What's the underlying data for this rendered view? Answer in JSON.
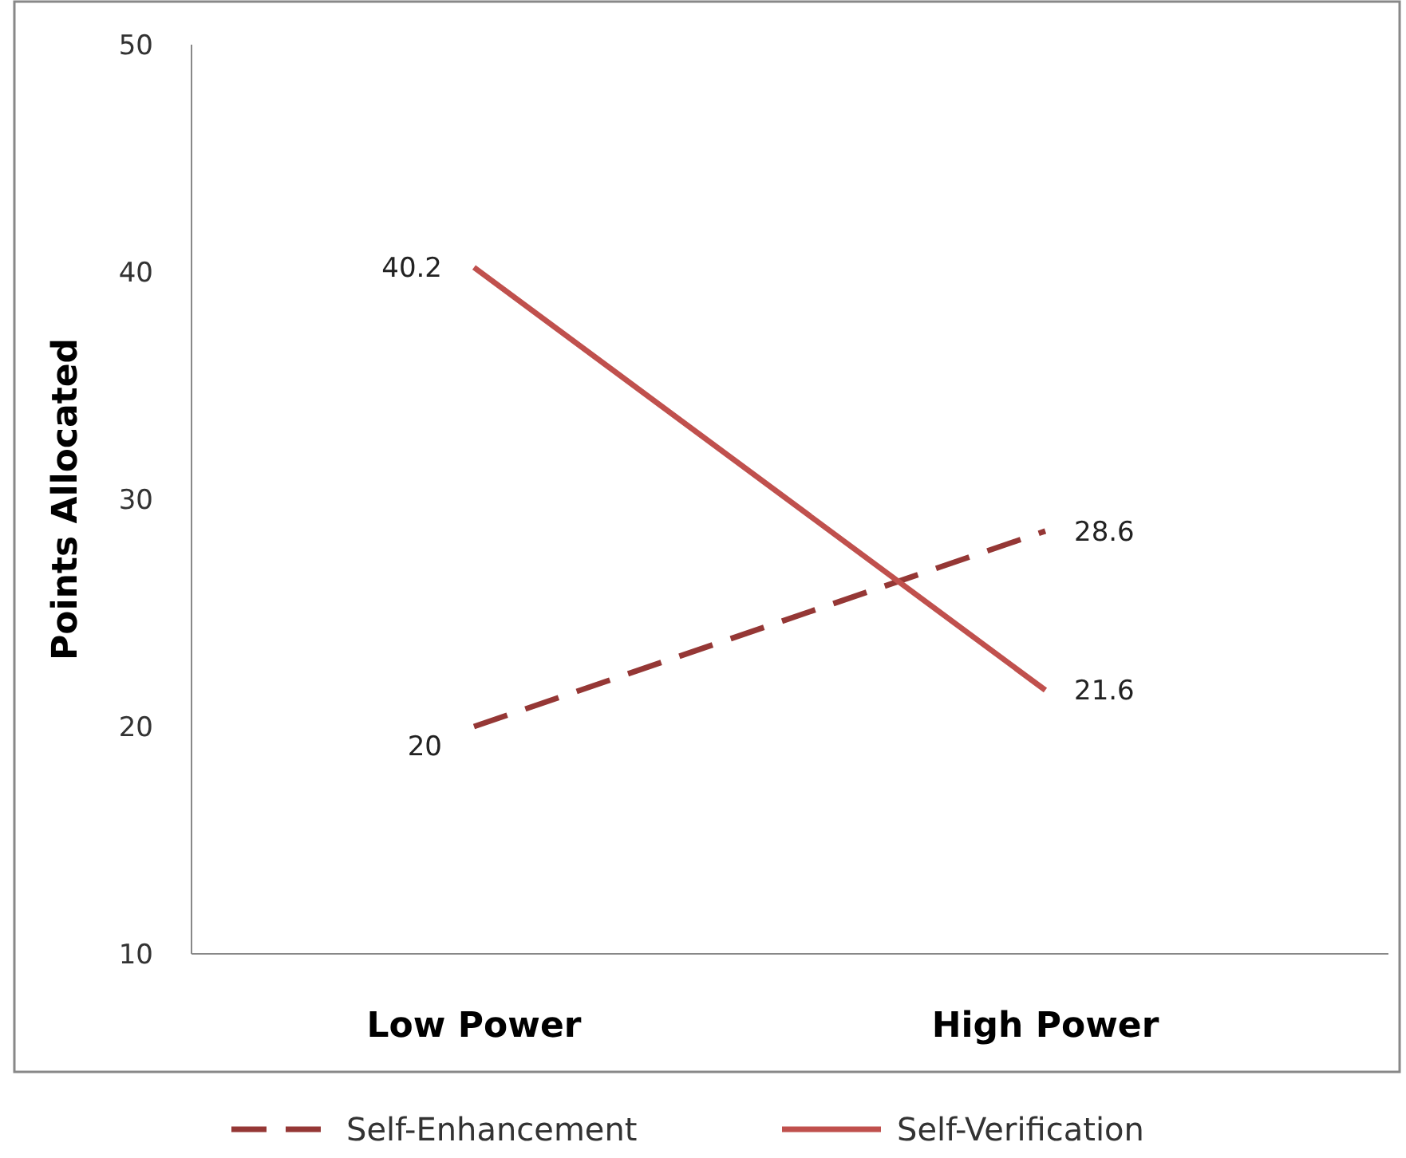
{
  "chart_data": {
    "type": "line",
    "ylabel": "Points Allocated",
    "categories": [
      "Low Power",
      "High Power"
    ],
    "series": [
      {
        "name": "Self-Enhancement",
        "color": "#953735",
        "values": [
          20,
          28.6
        ],
        "line_style": "dashed"
      },
      {
        "name": "Self-Verification",
        "color": "#c0504d",
        "values": [
          40.2,
          21.6
        ],
        "line_style": "solid"
      }
    ],
    "ylim": [
      10,
      50
    ],
    "yticks": [
      10,
      20,
      30,
      40,
      50
    ],
    "grid": false,
    "legend": "bottom",
    "data_labels": true,
    "marker": "none"
  }
}
